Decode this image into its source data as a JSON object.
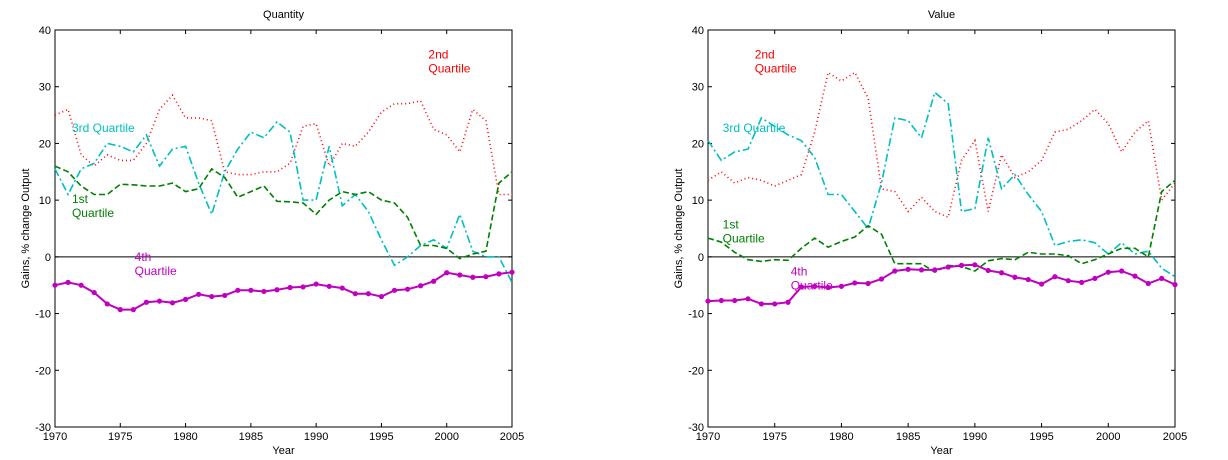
{
  "chart_data": [
    {
      "type": "line",
      "title": "Quantity",
      "xlabel": "Year",
      "ylabel": "Gains, % change Output",
      "x": [
        1970,
        1971,
        1972,
        1973,
        1974,
        1975,
        1976,
        1977,
        1978,
        1979,
        1980,
        1981,
        1982,
        1983,
        1984,
        1985,
        1986,
        1987,
        1988,
        1989,
        1990,
        1991,
        1992,
        1993,
        1994,
        1995,
        1996,
        1997,
        1998,
        1999,
        2000,
        2001,
        2002,
        2003,
        2004,
        2005
      ],
      "xlim": [
        1970,
        2005
      ],
      "xticks": [
        1970,
        1975,
        1980,
        1985,
        1990,
        1995,
        2000,
        2005
      ],
      "ylim": [
        -30,
        40
      ],
      "yticks": [
        -30,
        -20,
        -10,
        0,
        10,
        20,
        30,
        40
      ],
      "zero_line": true,
      "series": [
        {
          "label": [
            "2nd",
            "Quartile"
          ],
          "color": "#ff0000",
          "style": "dotted",
          "values": [
            25,
            26,
            18,
            16,
            18,
            17,
            17,
            20,
            26,
            28.5,
            24.5,
            24.5,
            24,
            15,
            14.5,
            14.5,
            15,
            15,
            16.5,
            23,
            23.5,
            16,
            20,
            19.5,
            22,
            25.5,
            27,
            27,
            27.5,
            22.5,
            21.5,
            18.5,
            26,
            24,
            11,
            11
          ]
        },
        {
          "label": [
            "3rd Quartile"
          ],
          "color": "#00bfbf",
          "style": "dashdot",
          "values": [
            15.5,
            11,
            15.5,
            16.5,
            20,
            19.5,
            18.5,
            21.5,
            16,
            19,
            19.5,
            13,
            7.5,
            15,
            19,
            22,
            21,
            23.8,
            22,
            10,
            10,
            19.5,
            9,
            11,
            8,
            3,
            -1.5,
            0,
            2,
            3,
            1.5,
            7.5,
            1,
            0,
            0,
            -4.5
          ]
        },
        {
          "label": [
            "1st",
            "Quartile"
          ],
          "color": "#008000",
          "style": "dashed",
          "values": [
            16,
            15,
            12.5,
            11,
            11,
            12.8,
            12.7,
            12.5,
            12.5,
            13,
            11.5,
            12,
            15.5,
            14,
            10.5,
            11.5,
            12.5,
            9.8,
            9.7,
            9.5,
            7.5,
            10,
            11.5,
            11,
            11.5,
            10,
            9.5,
            7,
            2,
            2,
            1.5,
            -0.3,
            0.5,
            1,
            13,
            15
          ]
        },
        {
          "label": [
            "4th",
            "Quartile"
          ],
          "color": "#bf00bf",
          "style": "solid",
          "marker": "o",
          "values": [
            -5,
            -4.5,
            -5,
            -6.3,
            -8.3,
            -9.3,
            -9.3,
            -8,
            -7.8,
            -8.1,
            -7.5,
            -6.6,
            -7,
            -6.8,
            -5.9,
            -5.9,
            -6.1,
            -5.8,
            -5.4,
            -5.3,
            -4.8,
            -5.2,
            -5.5,
            -6.5,
            -6.5,
            -7,
            -5.9,
            -5.7,
            -5.1,
            -4.3,
            -2.8,
            -3.2,
            -3.6,
            -3.5,
            -3,
            -2.7
          ]
        }
      ]
    },
    {
      "type": "line",
      "title": "Value",
      "xlabel": "Year",
      "ylabel": "Gains, % change Output",
      "x": [
        1970,
        1971,
        1972,
        1973,
        1974,
        1975,
        1976,
        1977,
        1978,
        1979,
        1980,
        1981,
        1982,
        1983,
        1984,
        1985,
        1986,
        1987,
        1988,
        1989,
        1990,
        1991,
        1992,
        1993,
        1994,
        1995,
        1996,
        1997,
        1998,
        1999,
        2000,
        2001,
        2002,
        2003,
        2004,
        2005
      ],
      "xlim": [
        1970,
        2005
      ],
      "xticks": [
        1970,
        1975,
        1980,
        1985,
        1990,
        1995,
        2000,
        2005
      ],
      "ylim": [
        -30,
        40
      ],
      "yticks": [
        -30,
        -20,
        -10,
        0,
        10,
        20,
        30,
        40
      ],
      "zero_line": true,
      "series": [
        {
          "label": [
            "2nd",
            "Quartile"
          ],
          "color": "#ff0000",
          "style": "dotted",
          "values": [
            13.5,
            15,
            13,
            14,
            13.5,
            12.5,
            13.5,
            14.5,
            22,
            32.5,
            31,
            32.5,
            28,
            12,
            11.5,
            8,
            10.5,
            8,
            7,
            17,
            20.5,
            8,
            18,
            14,
            15,
            17,
            22,
            22.5,
            24,
            26,
            23.5,
            18.5,
            22,
            24,
            10,
            13
          ]
        },
        {
          "label": [
            "3rd Quartile"
          ],
          "color": "#00bfbf",
          "style": "dashdot",
          "values": [
            20.5,
            17,
            18.5,
            19,
            24.5,
            23,
            21.5,
            20.5,
            17.5,
            11,
            11,
            8,
            5,
            13,
            24.5,
            24,
            21,
            29,
            27,
            8,
            8.5,
            21,
            12,
            14.5,
            11,
            8,
            2,
            2.7,
            3,
            2.5,
            0.5,
            2.5,
            0.5,
            1,
            -2,
            -3.5
          ]
        },
        {
          "label": [
            "1st",
            "Quartile"
          ],
          "color": "#008000",
          "style": "dashed",
          "values": [
            3.3,
            2.6,
            0.8,
            -0.5,
            -0.8,
            -0.5,
            -0.6,
            1.5,
            3.3,
            1.7,
            2.7,
            3.5,
            5.5,
            4,
            -1.2,
            -1.2,
            -1.2,
            -2.7,
            -1.5,
            -1.7,
            -2.5,
            -0.7,
            -0.3,
            -0.5,
            0.8,
            0.5,
            0.5,
            0.2,
            -1.2,
            -0.5,
            0.5,
            1.5,
            1.5,
            0,
            11.5,
            13.5
          ]
        },
        {
          "label": [
            "4th",
            "Quartile"
          ],
          "color": "#bf00bf",
          "style": "solid",
          "marker": "o",
          "values": [
            -7.8,
            -7.7,
            -7.7,
            -7.4,
            -8.3,
            -8.3,
            -8,
            -5.3,
            -5.2,
            -5.4,
            -5.2,
            -4.6,
            -4.7,
            -3.9,
            -2.5,
            -2.2,
            -2.3,
            -2.3,
            -1.8,
            -1.5,
            -1.4,
            -2.4,
            -2.8,
            -3.6,
            -4,
            -4.8,
            -3.5,
            -4.2,
            -4.5,
            -3.8,
            -2.7,
            -2.5,
            -3.4,
            -4.7,
            -3.8,
            -4.9
          ]
        }
      ]
    }
  ]
}
